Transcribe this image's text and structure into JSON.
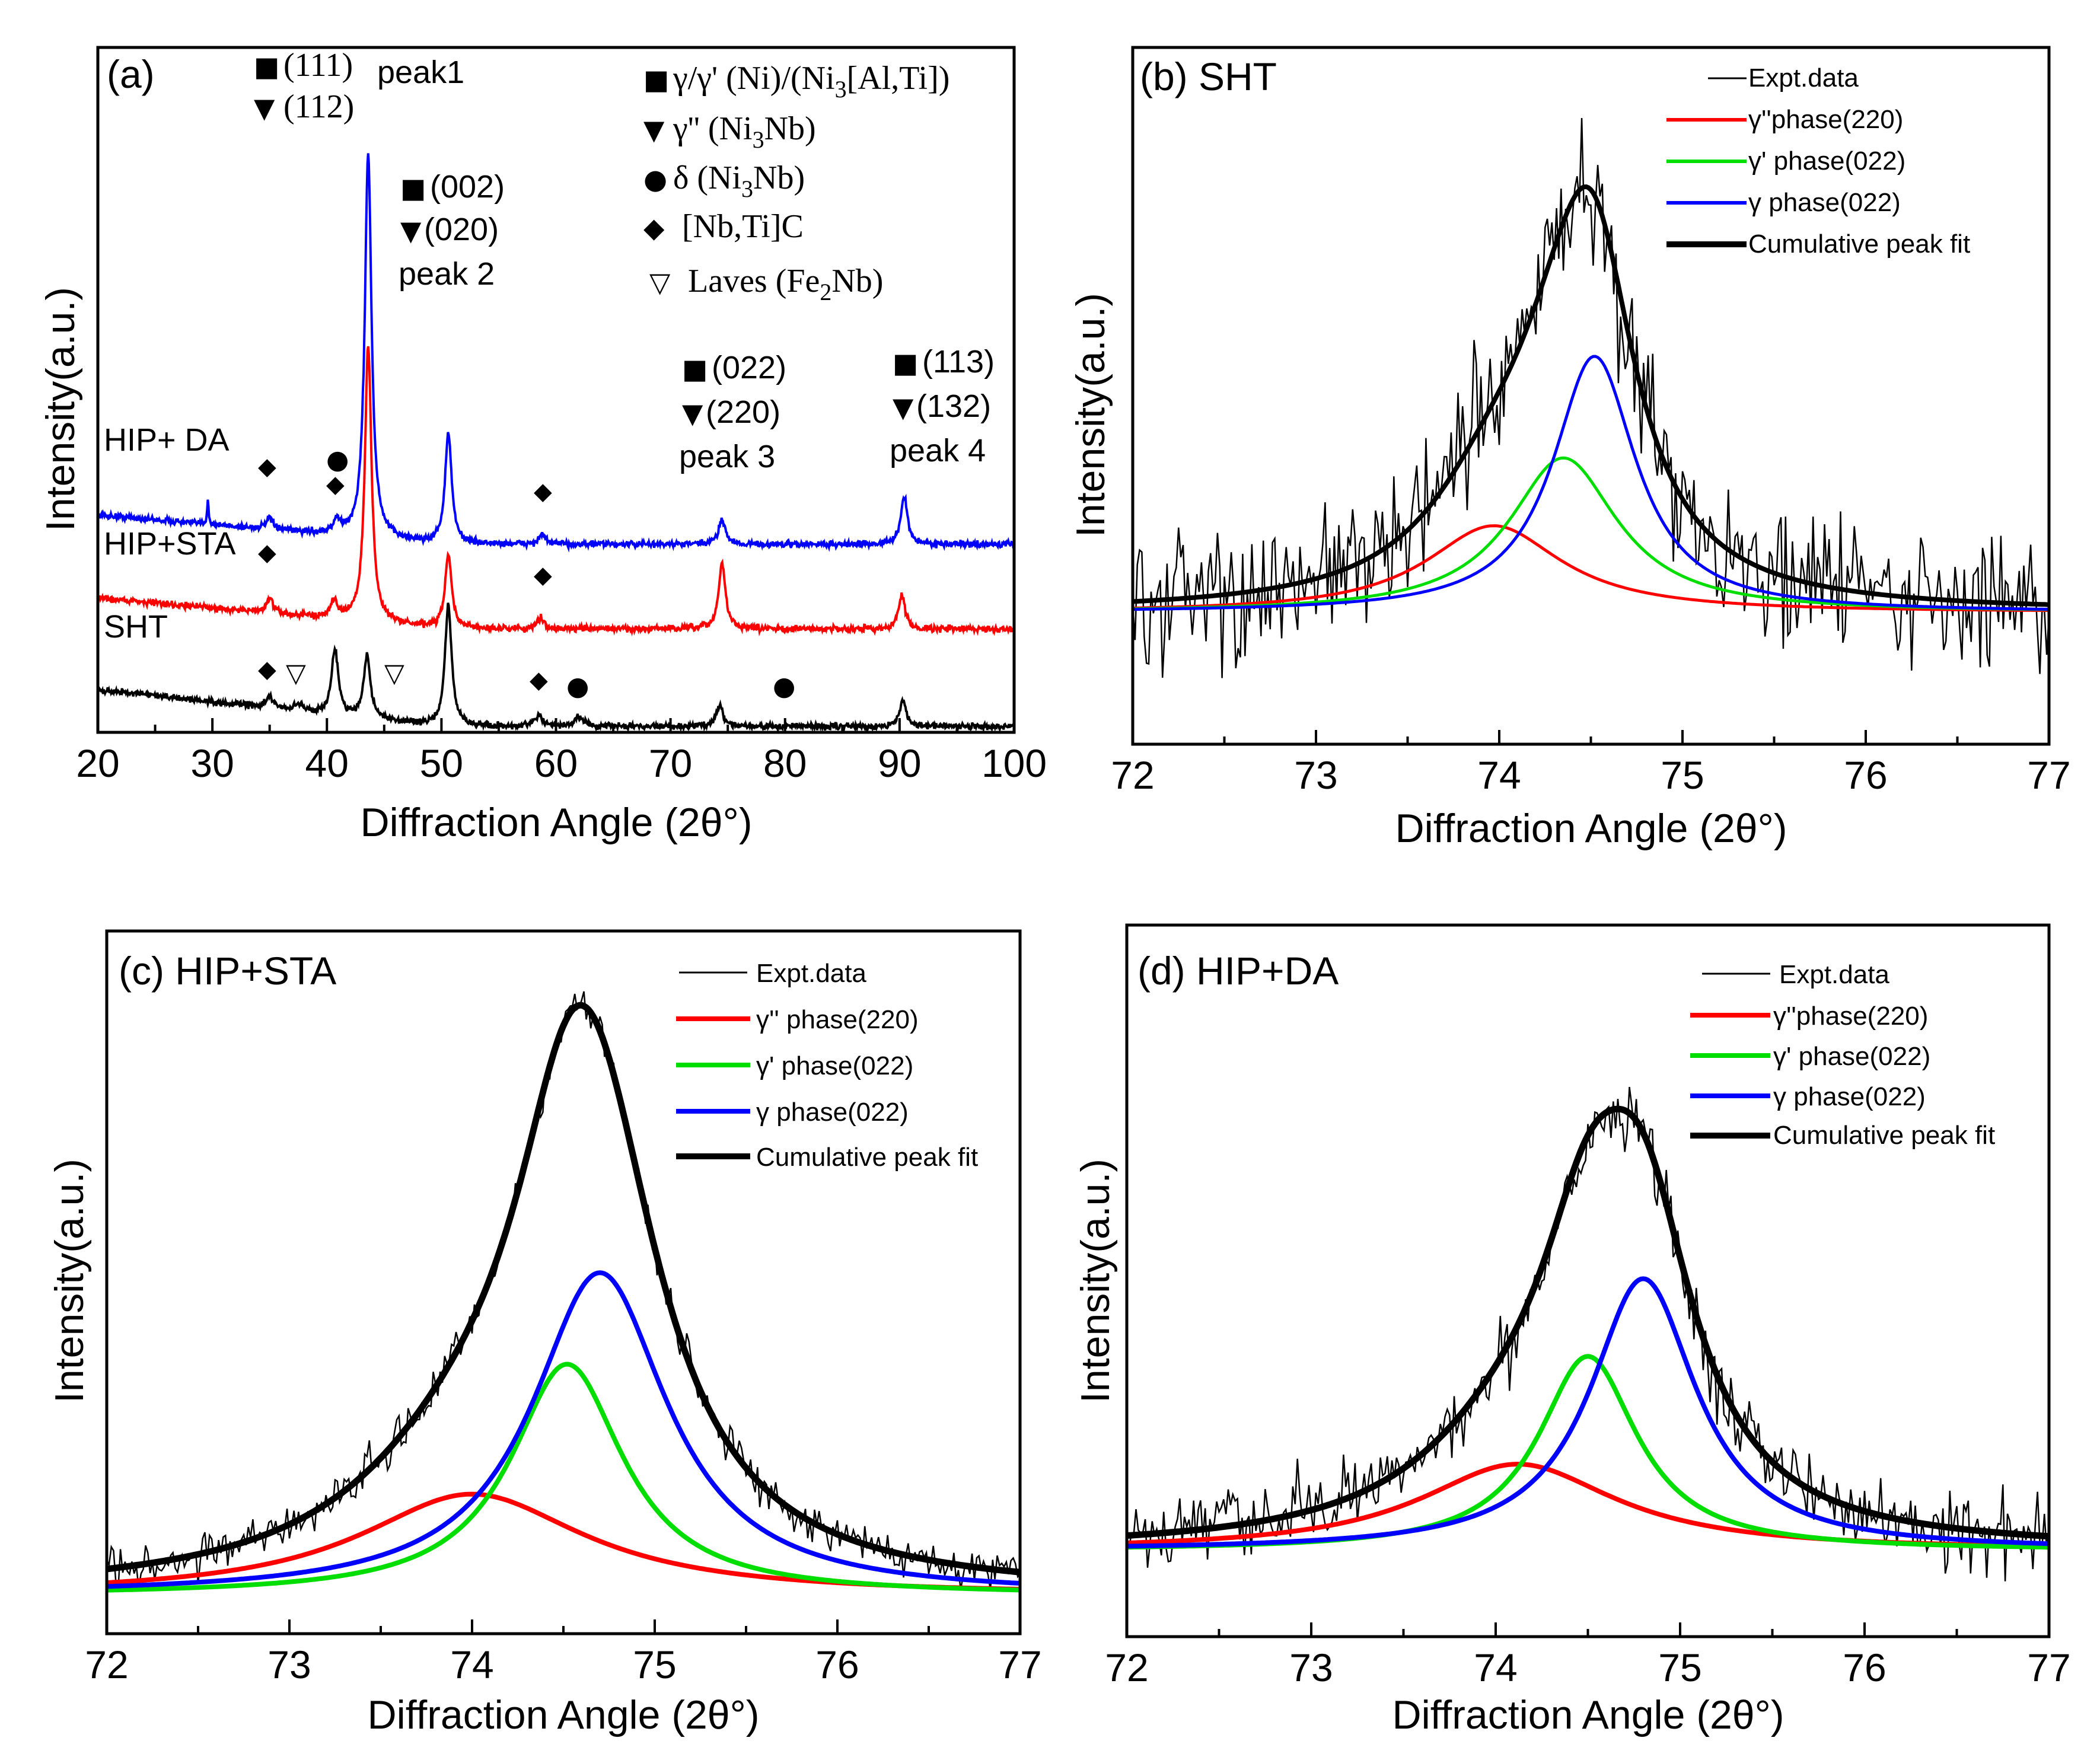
{
  "colors": {
    "black": "#000000",
    "red": "#ff0000",
    "green": "#00dd00",
    "blue": "#0000ff"
  },
  "chart_data": [
    {
      "id": "a",
      "type": "line",
      "title": "(a)",
      "xlabel": "Diffraction Angle (2θ°)",
      "ylabel": "Intensity(a.u.)",
      "xlim": [
        20,
        100
      ],
      "xticks": [
        "20",
        "30",
        "40",
        "50",
        "60",
        "70",
        "80",
        "90",
        "100"
      ],
      "series": [
        {
          "name": "HIP+ DA",
          "color": "#0000ff",
          "offset": 0.48,
          "baseline_start": 0.095,
          "baseline_end": 0.015,
          "peaks": [
            [
              43.6,
              1.05
            ],
            [
              50.6,
              0.3
            ],
            [
              74.5,
              0.07
            ],
            [
              90.4,
              0.13
            ],
            [
              35.0,
              0.03
            ],
            [
              40.9,
              0.035
            ],
            [
              58.8,
              0.025
            ],
            [
              29.6,
              0.07
            ]
          ]
        },
        {
          "name": "HIP+STA",
          "color": "#ff0000",
          "offset": 0.25,
          "baseline_start": 0.1,
          "baseline_end": 0.015,
          "peaks": [
            [
              43.6,
              0.75
            ],
            [
              50.6,
              0.2
            ],
            [
              74.5,
              0.18
            ],
            [
              90.2,
              0.09
            ],
            [
              35.0,
              0.04
            ],
            [
              40.6,
              0.05
            ],
            [
              58.7,
              0.03
            ]
          ]
        },
        {
          "name": "SHT",
          "color": "#000000",
          "offset": 0.0,
          "baseline_start": 0.1,
          "baseline_end": 0.0,
          "peaks": [
            [
              40.7,
              0.18
            ],
            [
              43.5,
              0.17
            ],
            [
              50.6,
              0.33
            ],
            [
              74.3,
              0.06
            ],
            [
              90.3,
              0.07
            ],
            [
              35.0,
              0.03
            ],
            [
              58.5,
              0.03
            ],
            [
              62.0,
              0.03
            ],
            [
              37.5,
              0.02
            ]
          ]
        }
      ],
      "curve_labels": [
        "HIP+ DA",
        "HIP+STA",
        "SHT"
      ],
      "peak_labels": {
        "p1_top": "(111)",
        "p1_bottom": "(112)",
        "p1_name": "peak1",
        "p2_top": "(002)",
        "p2_bottom": "(020)",
        "p2_name": "peak 2",
        "p3_top": "(022)",
        "p3_bottom": "(220)",
        "p3_name": "peak 3",
        "p4_top": "(113)",
        "p4_bottom": "(132)",
        "p4_name": "peak 4"
      },
      "legend": {
        "gamma": "γ/γ' (Ni)/(Ni",
        "gamma_sub": "3",
        "gamma_tail": "[Al,Ti])",
        "gpp": "γ'' (Ni",
        "gpp_sub": "3",
        "gpp_tail": "Nb)",
        "delta": "δ (Ni",
        "delta_sub": "3",
        "delta_tail": "Nb)",
        "carbide": "[Nb,Ti]C",
        "laves": "Laves (Fe",
        "laves_sub": "2",
        "laves_tail": "Nb)"
      }
    },
    {
      "id": "b",
      "type": "line",
      "title": "(b) SHT",
      "xlabel": "Diffraction Angle (2θ°)",
      "ylabel": "Intensity(a.u.)",
      "xlim": [
        72,
        77
      ],
      "ylim": [
        -0.35,
        1.5
      ],
      "xticks": [
        "72",
        "73",
        "74",
        "75",
        "76",
        "77"
      ],
      "noise": 0.18,
      "fits": [
        {
          "name": "γ''phase(220)",
          "color": "#ff0000",
          "center": 73.97,
          "fwhm": 0.9,
          "amplitude": 0.23
        },
        {
          "name": "γ' phase(022)",
          "color": "#00dd00",
          "center": 74.35,
          "fwhm": 0.72,
          "amplitude": 0.41
        },
        {
          "name": "γ  phase(022)",
          "color": "#0000ff",
          "center": 74.52,
          "fwhm": 0.55,
          "amplitude": 0.68
        },
        {
          "name": "Cumulative peak fit",
          "color": "#000000"
        }
      ],
      "legend": [
        "Expt.data",
        "γ''phase(220)",
        "γ' phase(022)",
        "γ  phase(022)",
        "Cumulative peak fit"
      ]
    },
    {
      "id": "c",
      "type": "line",
      "title": "(c) HIP+STA",
      "xlabel": "Diffraction Angle (2θ°)",
      "ylabel": "Intensity(a.u.)",
      "xlim": [
        72,
        77
      ],
      "ylim": [
        -0.08,
        1.38
      ],
      "xticks": [
        "72",
        "73",
        "74",
        "75",
        "76",
        "77"
      ],
      "noise": 0.04,
      "fits": [
        {
          "name": "γ'' phase(220)",
          "color": "#ff0000",
          "center": 74.0,
          "fwhm": 1.5,
          "amplitude": 0.21
        },
        {
          "name": "γ' phase(022)",
          "color": "#00dd00",
          "center": 74.52,
          "fwhm": 0.75,
          "amplitude": 0.48
        },
        {
          "name": "γ  phase(022)",
          "color": "#0000ff",
          "center": 74.7,
          "fwhm": 0.9,
          "amplitude": 0.67
        },
        {
          "name": "Cumulative peak fit",
          "color": "#000000"
        }
      ],
      "legend": [
        "Expt.data",
        "γ'' phase(220)",
        "γ' phase(022)",
        "γ  phase(022)",
        "Cumulative peak fit"
      ]
    },
    {
      "id": "d",
      "type": "line",
      "title": "(d) HIP+DA",
      "xlabel": "Diffraction Angle (2θ°)",
      "ylabel": "Intensity(a.u.)",
      "xlim": [
        72,
        77
      ],
      "ylim": [
        -0.2,
        1.45
      ],
      "xticks": [
        "72",
        "73",
        "74",
        "75",
        "76",
        "77"
      ],
      "noise": 0.08,
      "fits": [
        {
          "name": "γ''phase(220)",
          "color": "#ff0000",
          "center": 74.12,
          "fwhm": 1.3,
          "amplitude": 0.2
        },
        {
          "name": "γ' phase(022)",
          "color": "#00dd00",
          "center": 74.5,
          "fwhm": 0.65,
          "amplitude": 0.45
        },
        {
          "name": "γ  phase(022)",
          "color": "#0000ff",
          "center": 74.8,
          "fwhm": 0.7,
          "amplitude": 0.63
        },
        {
          "name": "Cumulative peak fit",
          "color": "#000000"
        }
      ],
      "legend": [
        "Expt.data",
        "γ''phase(220)",
        "γ' phase(022)",
        "γ  phase(022)",
        "Cumulative peak fit"
      ]
    }
  ]
}
